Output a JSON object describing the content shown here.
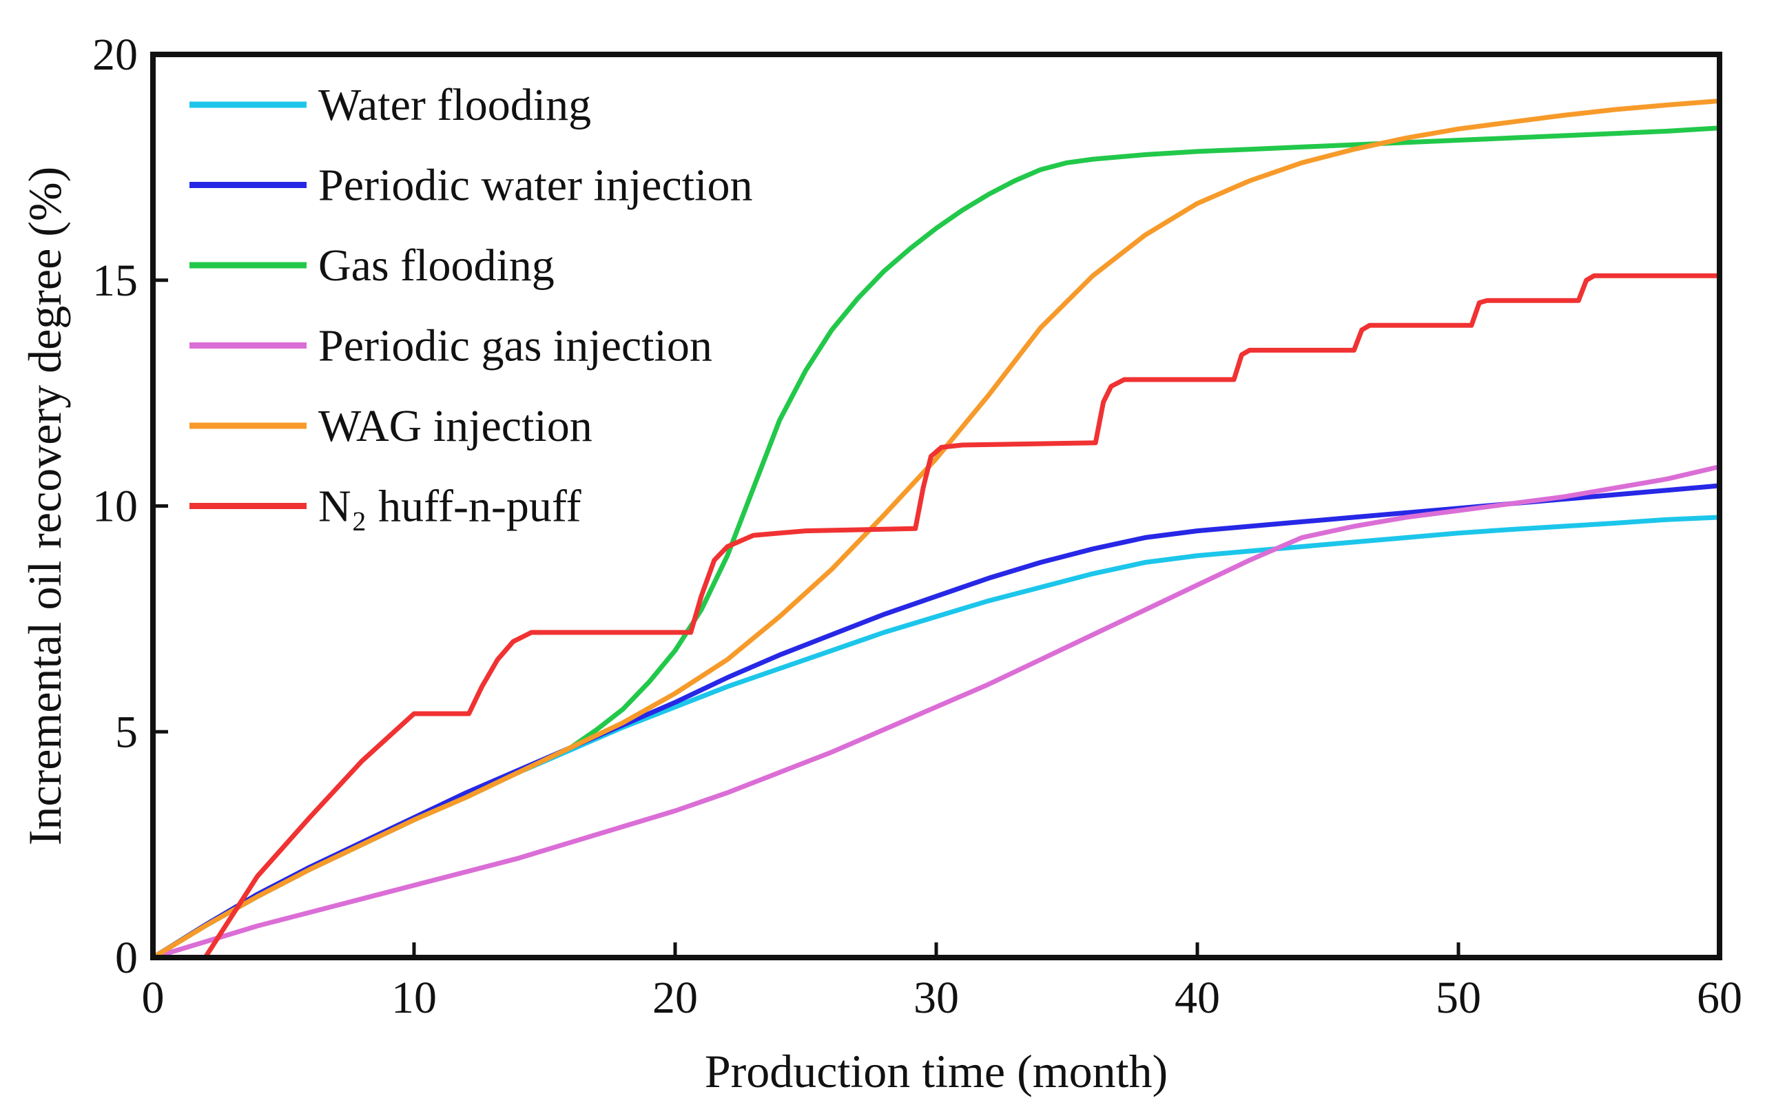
{
  "chart_data": {
    "type": "line",
    "title": "",
    "xlabel": "Production time (month)",
    "ylabel": "Incremental oil recovery degree (%)",
    "xlim": [
      0,
      60
    ],
    "ylim": [
      0,
      20
    ],
    "xticks": [
      0,
      10,
      20,
      30,
      40,
      50,
      60
    ],
    "yticks": [
      0,
      5,
      10,
      15,
      20
    ],
    "grid": false,
    "legend_position": "top-left",
    "series": [
      {
        "name": "Water flooding",
        "color": "#1cc6ea",
        "x": [
          0,
          2,
          4,
          6,
          8,
          10,
          12,
          14,
          16,
          18,
          20,
          22,
          24,
          26,
          28,
          30,
          32,
          34,
          36,
          38,
          40,
          42,
          44,
          46,
          48,
          50,
          52,
          54,
          56,
          58,
          60
        ],
        "y": [
          0,
          0.7,
          1.35,
          1.95,
          2.5,
          3.05,
          3.6,
          4.1,
          4.6,
          5.1,
          5.55,
          6.0,
          6.4,
          6.8,
          7.2,
          7.55,
          7.9,
          8.2,
          8.5,
          8.75,
          8.9,
          9.0,
          9.1,
          9.2,
          9.3,
          9.4,
          9.48,
          9.55,
          9.62,
          9.7,
          9.75
        ]
      },
      {
        "name": "Periodic water injection",
        "color": "#2727e6",
        "x": [
          0,
          2,
          4,
          6,
          8,
          10,
          12,
          14,
          16,
          18,
          20,
          22,
          24,
          26,
          28,
          30,
          32,
          34,
          36,
          38,
          40,
          42,
          44,
          46,
          48,
          50,
          52,
          54,
          56,
          58,
          60
        ],
        "y": [
          0,
          0.72,
          1.4,
          2.0,
          2.55,
          3.1,
          3.65,
          4.15,
          4.65,
          5.15,
          5.65,
          6.2,
          6.7,
          7.15,
          7.6,
          8.0,
          8.4,
          8.75,
          9.05,
          9.3,
          9.45,
          9.55,
          9.65,
          9.75,
          9.85,
          9.95,
          10.05,
          10.15,
          10.25,
          10.35,
          10.45
        ]
      },
      {
        "name": "Gas flooding",
        "color": "#22c84a",
        "x": [
          0,
          2,
          4,
          6,
          8,
          10,
          12,
          14,
          16,
          17,
          18,
          19,
          20,
          21,
          22,
          23,
          24,
          25,
          26,
          27,
          28,
          29,
          30,
          31,
          32,
          33,
          34,
          35,
          36,
          38,
          40,
          42,
          44,
          46,
          48,
          50,
          52,
          54,
          56,
          58,
          60
        ],
        "y": [
          0,
          0.7,
          1.35,
          1.95,
          2.5,
          3.05,
          3.55,
          4.1,
          4.65,
          5.05,
          5.5,
          6.1,
          6.8,
          7.7,
          8.9,
          10.4,
          11.9,
          13.0,
          13.9,
          14.6,
          15.2,
          15.7,
          16.15,
          16.55,
          16.9,
          17.2,
          17.45,
          17.6,
          17.68,
          17.78,
          17.85,
          17.9,
          17.95,
          18.0,
          18.05,
          18.1,
          18.15,
          18.2,
          18.25,
          18.3,
          18.37
        ]
      },
      {
        "name": "Periodic gas injection",
        "color": "#db6ed6",
        "x": [
          0,
          2,
          4,
          6,
          8,
          10,
          12,
          14,
          16,
          18,
          20,
          22,
          24,
          26,
          28,
          30,
          32,
          34,
          36,
          38,
          40,
          42,
          44,
          46,
          48,
          50,
          52,
          54,
          56,
          58,
          60
        ],
        "y": [
          0,
          0.35,
          0.7,
          1.0,
          1.3,
          1.6,
          1.9,
          2.2,
          2.55,
          2.9,
          3.25,
          3.65,
          4.1,
          4.55,
          5.05,
          5.55,
          6.05,
          6.6,
          7.15,
          7.7,
          8.25,
          8.8,
          9.3,
          9.55,
          9.75,
          9.9,
          10.05,
          10.2,
          10.4,
          10.6,
          10.87
        ]
      },
      {
        "name": "WAG injection",
        "color": "#f79a2a",
        "x": [
          0,
          2,
          4,
          6,
          8,
          10,
          12,
          14,
          16,
          18,
          20,
          22,
          24,
          26,
          28,
          30,
          32,
          34,
          36,
          38,
          40,
          42,
          44,
          46,
          48,
          50,
          52,
          54,
          56,
          58,
          60
        ],
        "y": [
          0,
          0.7,
          1.35,
          1.95,
          2.5,
          3.05,
          3.55,
          4.1,
          4.65,
          5.2,
          5.85,
          6.6,
          7.55,
          8.6,
          9.8,
          11.05,
          12.45,
          13.95,
          15.1,
          16.0,
          16.7,
          17.2,
          17.6,
          17.9,
          18.15,
          18.35,
          18.5,
          18.65,
          18.78,
          18.88,
          18.97
        ]
      },
      {
        "name": "N₂ huff-n-puff",
        "color": "#f03232",
        "x": [
          0,
          2,
          4,
          6,
          8,
          10,
          12.1,
          12.6,
          13.2,
          13.8,
          14.5,
          20.6,
          21.0,
          21.5,
          22.0,
          23.0,
          25.0,
          29.2,
          29.5,
          29.8,
          30.2,
          31.0,
          36.1,
          36.4,
          36.7,
          37.2,
          38.0,
          41.4,
          41.7,
          42.0,
          46.0,
          46.3,
          46.6,
          50.5,
          50.8,
          51.1,
          54.6,
          54.9,
          55.2,
          60
        ],
        "y": [
          null,
          0,
          1.8,
          3.1,
          4.35,
          5.4,
          5.4,
          6.0,
          6.6,
          7.0,
          7.2,
          7.2,
          8.0,
          8.8,
          9.1,
          9.35,
          9.45,
          9.5,
          10.4,
          11.1,
          11.3,
          11.35,
          11.4,
          12.3,
          12.65,
          12.8,
          12.8,
          12.8,
          13.35,
          13.45,
          13.45,
          13.9,
          14.0,
          14.0,
          14.5,
          14.55,
          14.55,
          15.0,
          15.1,
          15.1
        ]
      }
    ]
  }
}
